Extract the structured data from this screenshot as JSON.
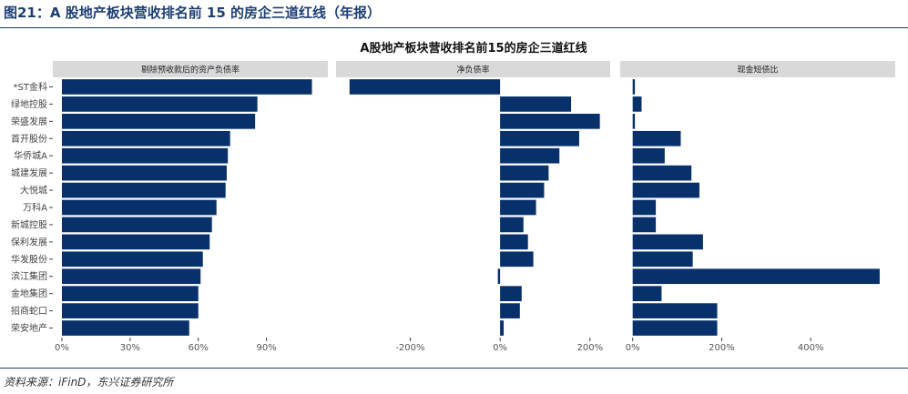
{
  "header": {
    "figure_title": "图21：A 股地产板块营收排名前 15 的房企三道红线（年报）",
    "source_note": "资料来源：iFinD，东兴证券研究所"
  },
  "colors": {
    "bar": "#08306b",
    "strip": "#d9d9d9",
    "header_text": "#1f3f73"
  },
  "chart_data": {
    "type": "bar",
    "orientation": "horizontal",
    "title": "A股地产板块营收排名前15的房企三道红线",
    "categories": [
      "*ST金科",
      "绿地控股",
      "荣盛发展",
      "首开股份",
      "华侨城A",
      "城建发展",
      "大悦城",
      "万科A",
      "新城控股",
      "保利发展",
      "华发股份",
      "滨江集团",
      "金地集团",
      "招商蛇口",
      "荣安地产"
    ],
    "panels": [
      {
        "name": "剔除预收款后的资产负债率",
        "values": [
          110,
          86,
          85,
          74,
          73,
          72.5,
          72,
          68,
          66,
          65,
          62,
          61,
          60,
          60,
          56
        ],
        "xlim": [
          -4,
          117
        ],
        "ticks": [
          0,
          30,
          60,
          90
        ],
        "tick_labels": [
          "0%",
          "30%",
          "60%",
          "90%"
        ]
      },
      {
        "name": "净负债率",
        "values": [
          -335,
          158,
          222,
          176,
          132,
          108,
          98,
          80,
          52,
          62,
          74,
          -5,
          48,
          44,
          8
        ],
        "xlim": [
          -365,
          245
        ],
        "ticks": [
          -200,
          0,
          200
        ],
        "tick_labels": [
          "-200%",
          "0%",
          "200%"
        ]
      },
      {
        "name": "现金短债比",
        "values": [
          5,
          20,
          5,
          108,
          72,
          132,
          150,
          52,
          52,
          158,
          135,
          555,
          65,
          190,
          190
        ],
        "xlim": [
          -28,
          590
        ],
        "ticks": [
          0,
          200,
          400
        ],
        "tick_labels": [
          "0%",
          "200%",
          "400%"
        ]
      }
    ]
  }
}
